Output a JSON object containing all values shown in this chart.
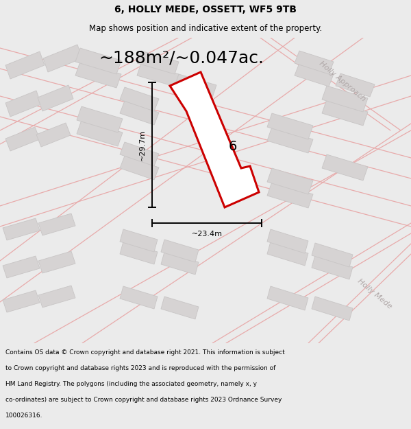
{
  "title": "6, HOLLY MEDE, OSSETT, WF5 9TB",
  "subtitle": "Map shows position and indicative extent of the property.",
  "area_text": "~188m²/~0.047ac.",
  "dim_height": "~29.7m",
  "dim_width": "~23.4m",
  "parcel_label": "6",
  "footer_lines": [
    "Contains OS data © Crown copyright and database right 2021. This information is subject",
    "to Crown copyright and database rights 2023 and is reproduced with the permission of",
    "HM Land Registry. The polygons (including the associated geometry, namely x, y",
    "co-ordinates) are subject to Crown copyright and database rights 2023 Ordnance Survey",
    "100026316."
  ],
  "bg_color": "#ebebeb",
  "map_bg": "#f2f0f0",
  "parcel_fill": "#ffffff",
  "parcel_edge": "#cc0000",
  "road_color": "#e8aaaa",
  "building_fill": "#d6d3d3",
  "building_edge": "#c8c5c5",
  "street_label_color": "#b0a8a8",
  "title_fontsize": 10,
  "subtitle_fontsize": 8.5,
  "area_fontsize": 18,
  "label_fontsize": 14,
  "dim_fontsize": 8,
  "footer_fontsize": 6.5
}
